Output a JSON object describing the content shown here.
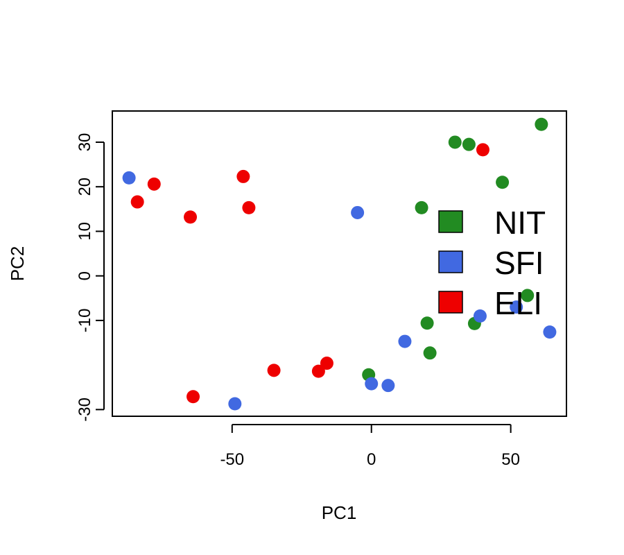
{
  "chart_data": {
    "type": "scatter",
    "title": "",
    "xlabel": "PC1",
    "ylabel": "PC2",
    "xlim": [
      -93,
      70
    ],
    "ylim": [
      -31.5,
      37
    ],
    "xticks": [
      -50,
      0,
      50
    ],
    "yticks": [
      -30,
      -10,
      0,
      10,
      20,
      30
    ],
    "grid": false,
    "legend_position": "right",
    "series": [
      {
        "name": "NIT",
        "color": "#228B22",
        "points": [
          {
            "x": 61,
            "y": 34
          },
          {
            "x": 30,
            "y": 30
          },
          {
            "x": 35,
            "y": 29.5
          },
          {
            "x": 47,
            "y": 21
          },
          {
            "x": 18,
            "y": 15.3
          },
          {
            "x": 56,
            "y": -4.4
          },
          {
            "x": 20,
            "y": -10.6
          },
          {
            "x": 37,
            "y": -10.7
          },
          {
            "x": 21,
            "y": -17.3
          },
          {
            "x": -1,
            "y": -22.2
          }
        ]
      },
      {
        "name": "SFI",
        "color": "#4169E1",
        "points": [
          {
            "x": -87,
            "y": 22
          },
          {
            "x": -5,
            "y": 14.2
          },
          {
            "x": 52,
            "y": -7
          },
          {
            "x": 39,
            "y": -9
          },
          {
            "x": 64,
            "y": -12.6
          },
          {
            "x": 12,
            "y": -14.7
          },
          {
            "x": 0,
            "y": -24.2
          },
          {
            "x": 6,
            "y": -24.6
          },
          {
            "x": -49,
            "y": -28.7
          }
        ]
      },
      {
        "name": "ELI",
        "color": "#EE0000",
        "points": [
          {
            "x": 40,
            "y": 28.3
          },
          {
            "x": -46,
            "y": 22.3
          },
          {
            "x": -78,
            "y": 20.6
          },
          {
            "x": -84,
            "y": 16.6
          },
          {
            "x": -44,
            "y": 15.3
          },
          {
            "x": -65,
            "y": 13.2
          },
          {
            "x": -16,
            "y": -19.6
          },
          {
            "x": -19,
            "y": -21.4
          },
          {
            "x": -35,
            "y": -21.2
          },
          {
            "x": -64,
            "y": -27.1
          }
        ]
      }
    ]
  }
}
